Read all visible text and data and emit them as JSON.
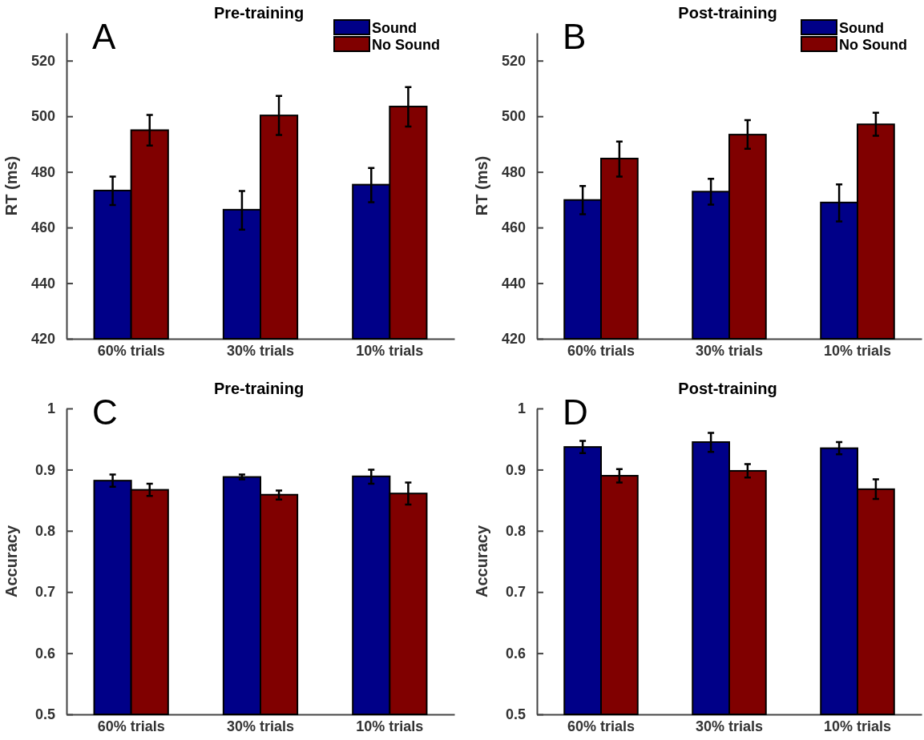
{
  "chart_data": [
    {
      "type": "bar",
      "title": "Pre-training",
      "ylabel": "RT (ms)",
      "annotations": [
        "A"
      ],
      "categories": [
        "60% trials",
        "30% trials",
        "10% trials"
      ],
      "ylim": [
        420,
        530
      ],
      "yticks": [
        420,
        440,
        460,
        480,
        500,
        520
      ],
      "legend": "top right",
      "series": [
        {
          "name": "Sound",
          "color": "#000088",
          "values": [
            473.3,
            466.4,
            475.4
          ],
          "errors": [
            [
              468.1,
              478.3
            ],
            [
              459.2,
              473.1
            ],
            [
              469.1,
              481.4
            ]
          ]
        },
        {
          "name": "No Sound",
          "color": "#800000",
          "values": [
            495.0,
            500.3,
            503.5
          ],
          "errors": [
            [
              489.5,
              500.5
            ],
            [
              493.3,
              507.3
            ],
            [
              496.3,
              510.5
            ]
          ]
        }
      ]
    },
    {
      "type": "bar",
      "title": "Post-training",
      "ylabel": "RT (ms)",
      "annotations": [
        "B"
      ],
      "categories": [
        "60% trials",
        "30% trials",
        "10% trials"
      ],
      "ylim": [
        420,
        530
      ],
      "yticks": [
        420,
        440,
        460,
        480,
        500,
        520
      ],
      "legend": "top right",
      "series": [
        {
          "name": "Sound",
          "color": "#000088",
          "values": [
            469.9,
            472.9,
            469.0
          ],
          "errors": [
            [
              464.8,
              474.9
            ],
            [
              468.2,
              477.5
            ],
            [
              462.2,
              475.5
            ]
          ]
        },
        {
          "name": "No Sound",
          "color": "#800000",
          "values": [
            484.8,
            493.4,
            497.1
          ],
          "errors": [
            [
              478.3,
              490.9
            ],
            [
              488.3,
              498.6
            ],
            [
              493.0,
              501.3
            ]
          ]
        }
      ]
    },
    {
      "type": "bar",
      "title": "Pre-training",
      "ylabel": "Accuracy",
      "annotations": [
        "C"
      ],
      "categories": [
        "60% trials",
        "30% trials",
        "10% trials"
      ],
      "ylim": [
        0.5,
        1
      ],
      "yticks": [
        0.5,
        0.6,
        0.7,
        0.8,
        0.9,
        1
      ],
      "series": [
        {
          "color": "#000088",
          "values": [
            0.882,
            0.888,
            0.889
          ],
          "errors": [
            [
              0.872,
              0.892
            ],
            [
              0.884,
              0.892
            ],
            [
              0.877,
              0.9
            ]
          ]
        },
        {
          "color": "#800000",
          "values": [
            0.867,
            0.859,
            0.861
          ],
          "errors": [
            [
              0.857,
              0.877
            ],
            [
              0.851,
              0.866
            ],
            [
              0.843,
              0.879
            ]
          ]
        }
      ]
    },
    {
      "type": "bar",
      "title": "Post-training",
      "ylabel": "Accuracy",
      "annotations": [
        "D"
      ],
      "categories": [
        "60% trials",
        "30% trials",
        "10% trials"
      ],
      "ylim": [
        0.5,
        1
      ],
      "yticks": [
        0.5,
        0.6,
        0.7,
        0.8,
        0.9,
        1
      ],
      "series": [
        {
          "color": "#000088",
          "values": [
            0.937,
            0.945,
            0.935
          ],
          "errors": [
            [
              0.927,
              0.947
            ],
            [
              0.929,
              0.96
            ],
            [
              0.925,
              0.945
            ]
          ]
        },
        {
          "color": "#800000",
          "values": [
            0.89,
            0.898,
            0.868
          ],
          "errors": [
            [
              0.879,
              0.901
            ],
            [
              0.887,
              0.909
            ],
            [
              0.852,
              0.884
            ]
          ]
        }
      ]
    }
  ]
}
